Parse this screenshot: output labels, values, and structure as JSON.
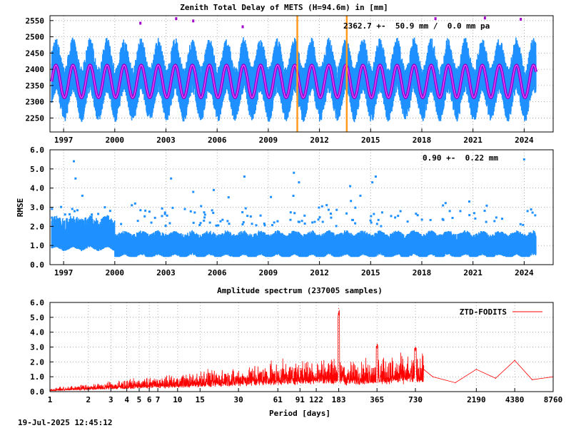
{
  "footer": {
    "timestamp": "19-Jul-2025 12:45:12"
  },
  "colors": {
    "data": "#1e90ff",
    "model": "#9400d3",
    "model_center": "#ff66ff",
    "event": "#ff9a1f",
    "spectrum": "#ff0000",
    "outlier": "#a000c8"
  },
  "chart_data": [
    {
      "type": "scatter",
      "title": "Zenith Total Delay of METS (H=94.6m) in [mm]",
      "annotation": "2362.7 +-  50.9 mm /  0.0 mm pa",
      "xlabel": "",
      "ylabel": "",
      "xlim": [
        1996.2,
        2025.7
      ],
      "ylim": [
        2207,
        2565
      ],
      "yticks": [
        2250,
        2300,
        2350,
        2400,
        2450,
        2500,
        2550
      ],
      "xticks": [
        1997,
        2000,
        2003,
        2006,
        2009,
        2012,
        2015,
        2018,
        2021,
        2024
      ],
      "grid": true,
      "data_range": [
        1996.3,
        2024.7
      ],
      "series": [
        {
          "kind": "observations",
          "mean": 2362.7,
          "annual_amplitude": 45,
          "scatter": 70
        },
        {
          "kind": "seasonal_model",
          "mean": 2362.7,
          "annual_amplitude": 50
        }
      ],
      "events": [
        2010.7,
        2013.6
      ],
      "outliers": [
        [
          2001.5,
          2543
        ],
        [
          2003.6,
          2557
        ],
        [
          2004.6,
          2550
        ],
        [
          2007.5,
          2532
        ],
        [
          2018.8,
          2557
        ],
        [
          2021.7,
          2559
        ],
        [
          2023.8,
          2555
        ]
      ]
    },
    {
      "type": "scatter",
      "title": "",
      "annotation": "0.90 +-  0.22 mm",
      "xlabel": "",
      "ylabel": "RMSE",
      "xlim": [
        1996.2,
        2025.7
      ],
      "ylim": [
        0,
        6
      ],
      "yticks": [
        0.0,
        1.0,
        2.0,
        3.0,
        4.0,
        5.0,
        6.0
      ],
      "xticks": [
        1997,
        2000,
        2003,
        2006,
        2009,
        2012,
        2015,
        2018,
        2021,
        2024
      ],
      "grid": true,
      "data_range": [
        1996.3,
        2024.7
      ],
      "series": [
        {
          "kind": "rmse",
          "mean": 0.9,
          "sd": 0.22
        }
      ],
      "outliers": [
        [
          1997.6,
          5.4
        ],
        [
          1997.7,
          4.5
        ],
        [
          1998.1,
          3.6
        ],
        [
          2003.3,
          4.5
        ],
        [
          2004.6,
          3.8
        ],
        [
          2005.8,
          3.9
        ],
        [
          2007.6,
          4.6
        ],
        [
          2010.5,
          4.8
        ],
        [
          2010.8,
          4.3
        ],
        [
          2013.8,
          4.1
        ],
        [
          2014.4,
          3.6
        ],
        [
          2015.1,
          4.3
        ],
        [
          2015.3,
          4.6
        ],
        [
          2024.0,
          5.5
        ],
        [
          2024.2,
          2.8
        ]
      ]
    },
    {
      "type": "line",
      "title": "Amplitude spectrum (237005 samples)",
      "xlabel": "Period [days]",
      "ylabel": "",
      "xscale": "log",
      "xlim": [
        1,
        8760
      ],
      "ylim": [
        0,
        6
      ],
      "yticks": [
        0.0,
        1.0,
        2.0,
        3.0,
        4.0,
        5.0,
        6.0
      ],
      "xticks": [
        1,
        2,
        3,
        4,
        5,
        6,
        7,
        10,
        15,
        30,
        61,
        91,
        122,
        183,
        365,
        730,
        2190,
        4380,
        8760
      ],
      "grid": true,
      "legend": {
        "label": "ZTD-FODITS",
        "placement": "top-right"
      },
      "series": [
        {
          "name": "ZTD-FODITS",
          "peaks": [
            [
              183,
              5.6
            ],
            [
              365,
              3.2
            ],
            [
              730,
              3.0
            ],
            [
              1000,
              1.0
            ],
            [
              1500,
              0.6
            ],
            [
              2190,
              1.5
            ],
            [
              3100,
              0.9
            ],
            [
              4380,
              2.1
            ],
            [
              6000,
              0.8
            ],
            [
              8760,
              1.0
            ]
          ]
        }
      ]
    }
  ]
}
